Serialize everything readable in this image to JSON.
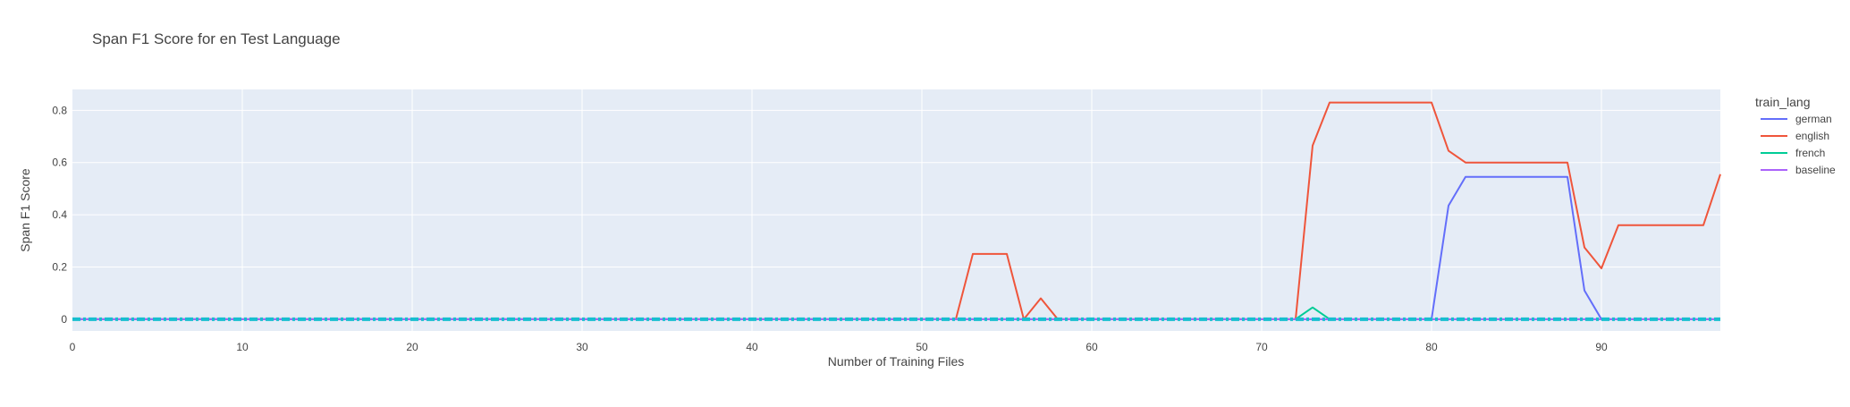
{
  "chart_data": {
    "type": "line",
    "title": "Span F1 Score for en Test Language",
    "xlabel": "Number of Training Files",
    "ylabel": "Span F1 Score",
    "xlim": [
      0,
      97
    ],
    "ylim": [
      -0.045,
      0.88
    ],
    "xticks": [
      0,
      10,
      20,
      30,
      40,
      50,
      60,
      70,
      80,
      90
    ],
    "yticks": [
      0,
      0.2,
      0.4,
      0.6,
      0.8
    ],
    "grid": true,
    "legend_title": "train_lang",
    "legend_position": "right",
    "series": [
      {
        "name": "german",
        "color": "#636efa",
        "x": [
          0,
          80,
          81,
          82,
          88,
          89,
          90,
          97
        ],
        "y": [
          0,
          0,
          0.435,
          0.545,
          0.545,
          0.11,
          0,
          0
        ]
      },
      {
        "name": "english",
        "color": "#ef553b",
        "x": [
          0,
          52,
          53,
          55,
          56,
          57,
          58,
          72,
          73,
          74,
          80,
          81,
          82,
          88,
          89,
          90,
          91,
          96,
          97
        ],
        "y": [
          0,
          0,
          0.25,
          0.25,
          0,
          0.08,
          0,
          0,
          0.665,
          0.83,
          0.83,
          0.645,
          0.6,
          0.6,
          0.275,
          0.195,
          0.36,
          0.36,
          0.555
        ]
      },
      {
        "name": "french",
        "color": "#00cc96",
        "x": [
          0,
          72,
          73,
          74,
          97
        ],
        "y": [
          0,
          0,
          0.045,
          0,
          0
        ]
      },
      {
        "name": "baseline",
        "color": "#ab63fa",
        "x": [
          0,
          97
        ],
        "y": [
          0,
          0
        ]
      }
    ],
    "baseline_line": {
      "y": 0,
      "color": "#17becf",
      "style": "dashdot"
    }
  }
}
